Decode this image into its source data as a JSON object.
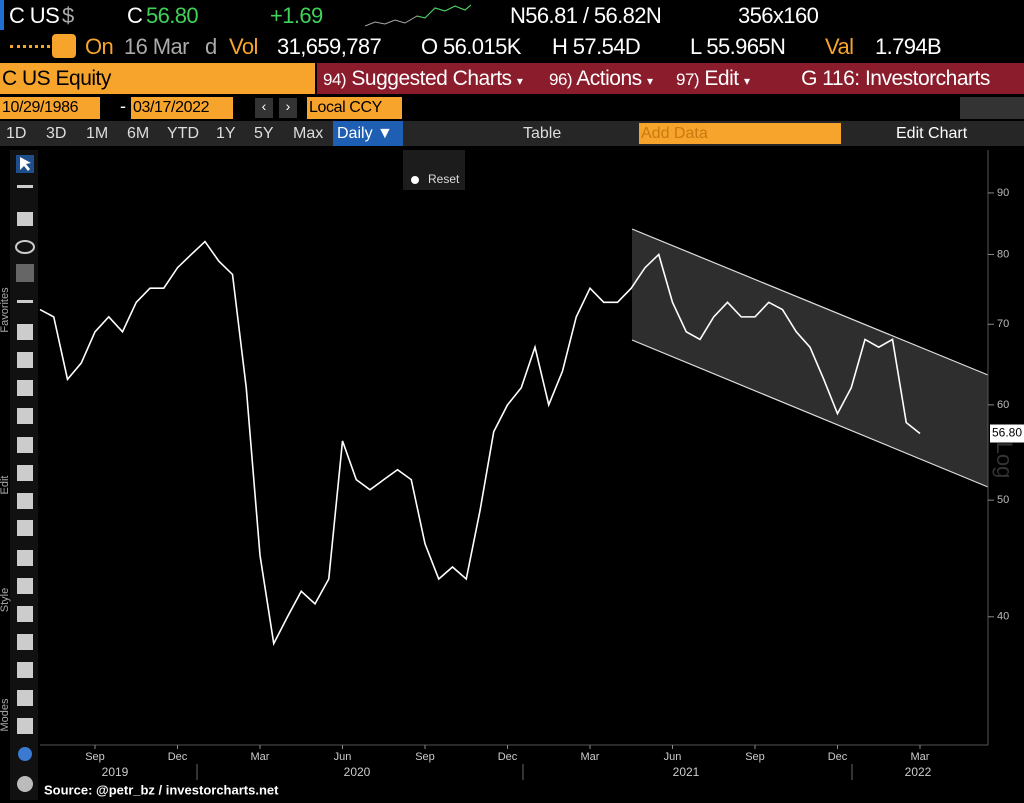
{
  "header": {
    "ticker": "C US",
    "currency": "$",
    "symbol": "C",
    "price": "56.80",
    "change": "+1.69",
    "bid_ask": "N56.81 / 56.82N",
    "size": "356x160",
    "on": "On",
    "date": "16 Mar",
    "date_suffix": "d",
    "vol_label": "Vol",
    "vol": "31,659,787",
    "open": "O 56.015K",
    "high": "H 57.54D",
    "low": "L 55.965N",
    "val_label": "Val",
    "val": "1.794B"
  },
  "toolbar": {
    "security": "C US Equity",
    "menu": [
      {
        "num": "94)",
        "label": "Suggested Charts"
      },
      {
        "num": "96)",
        "label": "Actions"
      },
      {
        "num": "97)",
        "label": "Edit"
      }
    ],
    "function": "G 116: Investorcharts",
    "start_date": "10/29/1986",
    "end_date": "03/17/2022",
    "currency": "Local CCY",
    "ranges": [
      "1D",
      "3D",
      "1M",
      "6M",
      "YTD",
      "1Y",
      "5Y",
      "Max"
    ],
    "period": "Daily ▼",
    "table": "Table",
    "add_data": "Add Data",
    "edit_chart": "Edit Chart",
    "reset": "Reset"
  },
  "side_labels": [
    "Favorites",
    "Edit",
    "Style",
    "Modes"
  ],
  "source": "Source: @petr_bz / investorcharts.net",
  "chart_data": {
    "type": "line",
    "color": "#ffffff",
    "log": true,
    "categories": [
      null,
      null,
      null,
      null,
      "Sep",
      null,
      null,
      null,
      null,
      null,
      "Dec",
      null,
      null,
      null,
      null,
      null,
      "Mar",
      null,
      null,
      null,
      null,
      null,
      "Jun",
      null,
      null,
      null,
      null,
      null,
      "Sep",
      null,
      null,
      null,
      null,
      null,
      "Dec",
      null,
      null,
      null,
      null,
      null,
      "Mar",
      null,
      null,
      null,
      null,
      null,
      "Jun",
      null,
      null,
      null,
      null,
      null,
      "Sep",
      null,
      null,
      null,
      null,
      null,
      "Dec",
      null,
      null,
      null,
      null,
      null,
      "Mar"
    ],
    "values": [
      72,
      71,
      63,
      65,
      69,
      71,
      69,
      73,
      75,
      75,
      78,
      80,
      82,
      79,
      77,
      62,
      45,
      38,
      40,
      42,
      41,
      43,
      56,
      52,
      51,
      52,
      53,
      52,
      46,
      43,
      44,
      43,
      49,
      57,
      60,
      62,
      67,
      60,
      64,
      71,
      75,
      73,
      73,
      75,
      78,
      80,
      73,
      69,
      68,
      71,
      73,
      71,
      71,
      73,
      72,
      69,
      67,
      63,
      59,
      62,
      68,
      67,
      68,
      58,
      56.8
    ],
    "year_labels": [
      "2019",
      "2020",
      "2021",
      "2022"
    ],
    "last_price_label": "56.80",
    "scale_label": "Log",
    "ylim": [
      31.3,
      97.7
    ],
    "yticks": [
      40,
      50,
      60,
      70,
      80,
      90
    ]
  }
}
